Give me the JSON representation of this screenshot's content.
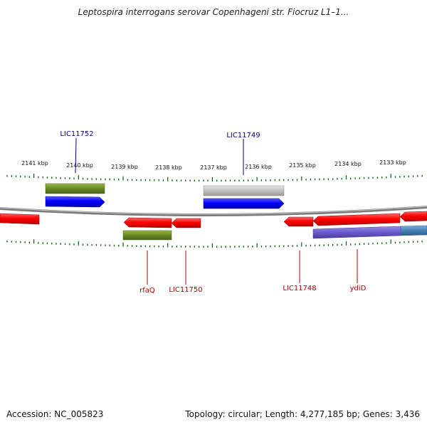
{
  "title": "Leptospira interrogans serovar Copenhageni str. Fiocruz L1–1...",
  "accession": "Accession: NC_005823",
  "topology": "Topology: circular; Length: 4,277,185 bp; Genes: 3,436",
  "scale_labels": [
    "2141 kbp",
    "2140 kbp",
    "2139 kbp",
    "2138 kbp",
    "2137 kbp",
    "2136 kbp",
    "2135 kbp",
    "2134 kbp",
    "2133 kbp"
  ],
  "gene_labels": {
    "top": [
      "LIC11752",
      "LIC11749"
    ],
    "bottom": [
      "rfaQ",
      "LIC11750",
      "LIC11748",
      "ydiD"
    ]
  },
  "colors": {
    "forward_label": "#00008b",
    "reverse_label": "#b00000",
    "cds_red": "#ff0000",
    "cds_blue": "#0000ff",
    "olive": "#6b8e23",
    "grey": "#c0c0c0",
    "purple": "#6a5acd",
    "steelblue": "#4682b4",
    "tick_green": "#006400",
    "backbone": "#808080"
  }
}
